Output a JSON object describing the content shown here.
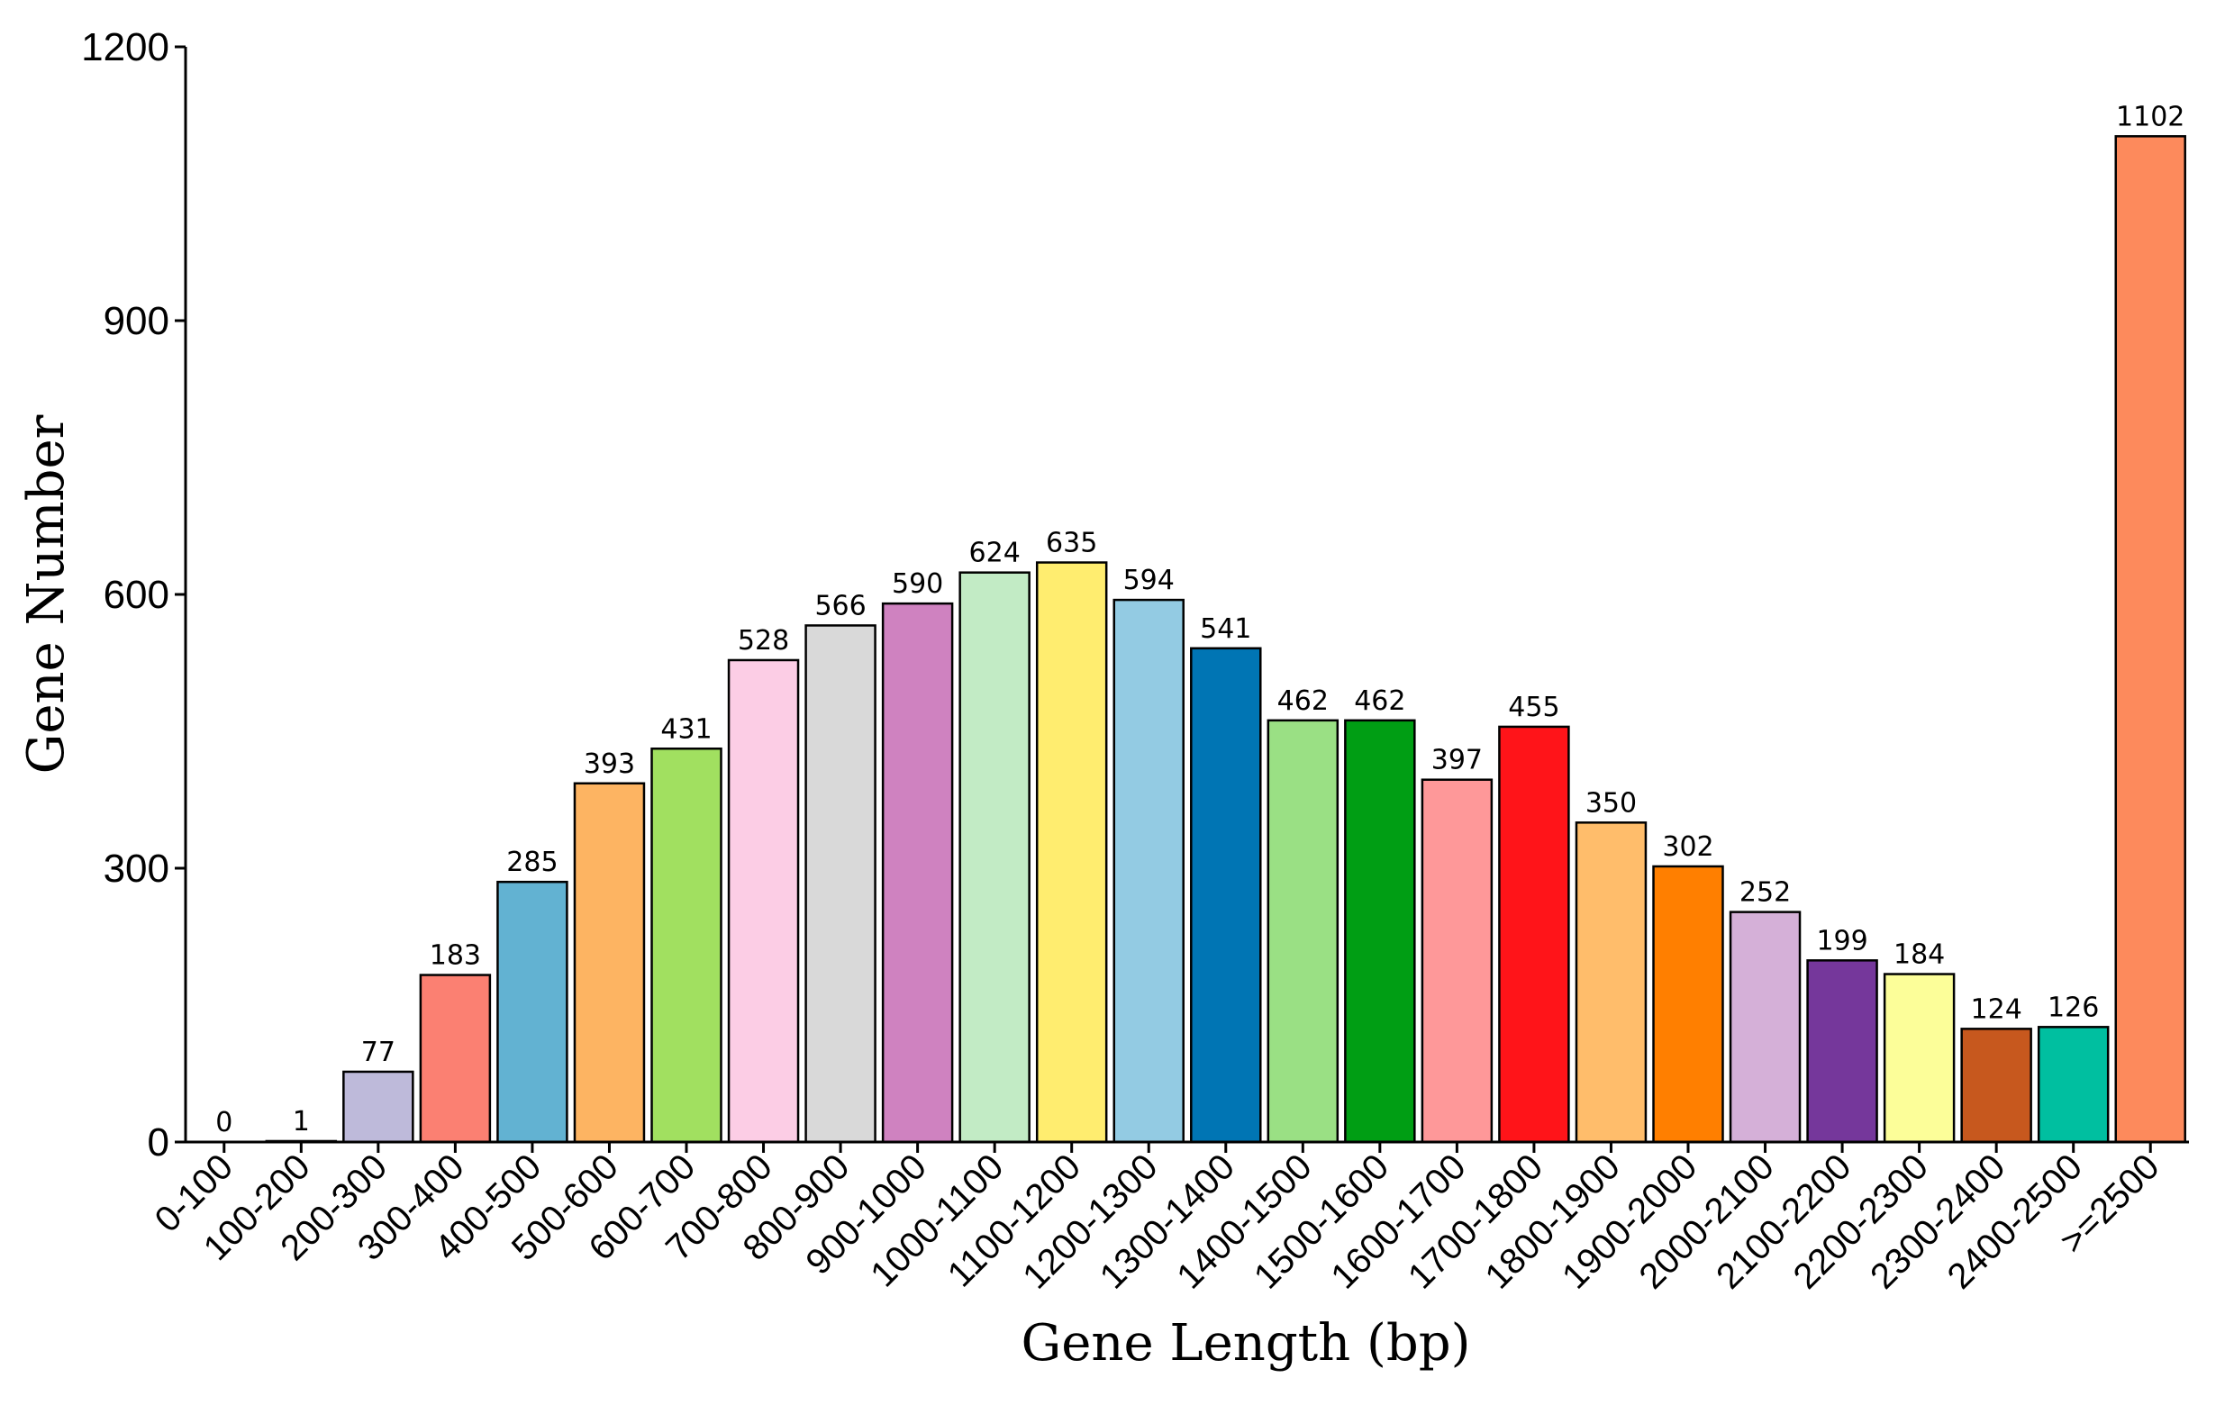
{
  "chart_data": {
    "type": "bar",
    "title": "",
    "xlabel": "Gene Length (bp)",
    "ylabel": "Gene Number",
    "ylim": [
      0,
      1200
    ],
    "yticks": [
      0,
      300,
      600,
      900,
      1200
    ],
    "yticks_text": [
      "0",
      "300",
      "600",
      "900",
      "1200"
    ],
    "grid": false,
    "legend": "none",
    "categories": [
      "0-100",
      "100-200",
      "200-300",
      "300-400",
      "400-500",
      "500-600",
      "600-700",
      "700-800",
      "800-900",
      "900-1000",
      "1000-1100",
      "1100-1200",
      "1200-1300",
      "1300-1400",
      "1400-1500",
      "1500-1600",
      "1600-1700",
      "1700-1800",
      "1800-1900",
      "1900-2000",
      "2000-2100",
      "2100-2200",
      "2200-2300",
      "2300-2400",
      "2400-2500",
      ">=2500"
    ],
    "values": [
      0,
      1,
      77,
      183,
      285,
      393,
      431,
      528,
      566,
      590,
      624,
      635,
      594,
      541,
      462,
      462,
      397,
      455,
      350,
      302,
      252,
      199,
      184,
      124,
      126,
      1102
    ],
    "value_labels": [
      "0",
      "1",
      "77",
      "183",
      "285",
      "393",
      "431",
      "528",
      "566",
      "590",
      "624",
      "635",
      "594",
      "541",
      "462",
      "462",
      "397",
      "455",
      "350",
      "302",
      "252",
      "199",
      "184",
      "124",
      "126",
      "1102"
    ],
    "colors": [
      "#8dd3c7",
      "#ffffb3",
      "#bebada",
      "#fb8072",
      "#62b2d2",
      "#fdb462",
      "#a1e060",
      "#fccde5",
      "#d9d9d9",
      "#cf82c0",
      "#c2ebc5",
      "#ffed6f",
      "#93cbe3",
      "#0075b4",
      "#9ae084",
      "#009e14",
      "#fe9899",
      "#ff1419",
      "#ffbd6b",
      "#ff7f00",
      "#d5b0d8",
      "#75379b",
      "#fcfe99",
      "#c7581e",
      "#00bfa0",
      "#fd8a5c"
    ]
  }
}
